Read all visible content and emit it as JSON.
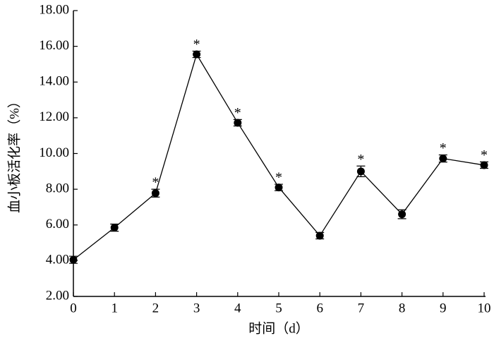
{
  "chart_data": {
    "type": "line",
    "x_label": "时间（d）",
    "y_label": "血小板活化率（%）",
    "x": [
      0,
      1,
      2,
      3,
      4,
      5,
      6,
      7,
      8,
      9,
      10
    ],
    "values": [
      4.05,
      5.85,
      7.78,
      15.55,
      11.72,
      8.1,
      5.4,
      9.0,
      6.6,
      9.72,
      9.35
    ],
    "errors": [
      0.2,
      0.2,
      0.22,
      0.18,
      0.18,
      0.18,
      0.18,
      0.3,
      0.25,
      0.2,
      0.18
    ],
    "significance": [
      null,
      null,
      "*",
      "*",
      "*",
      "*",
      null,
      "*",
      null,
      "*",
      "*"
    ],
    "color": "#000000",
    "xlim": [
      0,
      10
    ],
    "xticks": [
      0,
      1,
      2,
      3,
      4,
      5,
      6,
      7,
      8,
      9,
      10
    ],
    "ylim": [
      2,
      18
    ],
    "yticks": [
      {
        "value": 2,
        "label": "2.00"
      },
      {
        "value": 4,
        "label": "4.00"
      },
      {
        "value": 6,
        "label": "6.00"
      },
      {
        "value": 8,
        "label": "8.00"
      },
      {
        "value": 10,
        "label": "10.00"
      },
      {
        "value": 12,
        "label": "12.00"
      },
      {
        "value": 14,
        "label": "14.00"
      },
      {
        "value": 16,
        "label": "16.00"
      },
      {
        "value": 18,
        "label": "18.00"
      }
    ]
  }
}
